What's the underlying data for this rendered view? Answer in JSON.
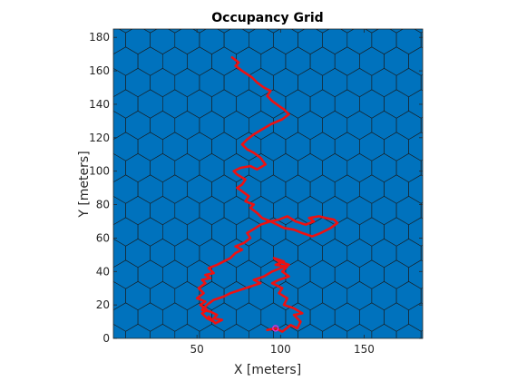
{
  "chart_data": {
    "type": "scatter",
    "title": "Occupancy Grid",
    "xlabel": "X [meters]",
    "ylabel": "Y [meters]",
    "xlim": [
      0,
      185
    ],
    "ylim": [
      0,
      185
    ],
    "xticks": [
      "50",
      "100",
      "150"
    ],
    "yticks": [
      "0",
      "20",
      "40",
      "60",
      "80",
      "100",
      "120",
      "140",
      "160",
      "180"
    ],
    "grid": false,
    "legend": "none",
    "hex_radius": 8.5,
    "colors": {
      "occupied": "#0072BD",
      "hex_edge": "#1a1a1a",
      "free_background": "#ffffff",
      "path": "#ee1111",
      "start_marker": "#ee2ad3"
    },
    "path": {
      "x": [
        92,
        97,
        101,
        106,
        110,
        112,
        108,
        113,
        108,
        102,
        104,
        99,
        101,
        95,
        99,
        105,
        101,
        104,
        97,
        102,
        96,
        99,
        105,
        100,
        95,
        90,
        84,
        88,
        82,
        76,
        70,
        66,
        60,
        56,
        53,
        58,
        62,
        60,
        65,
        61,
        57,
        60,
        56,
        53,
        56,
        52,
        55,
        50,
        54,
        51,
        55,
        53,
        58,
        55,
        60,
        57,
        62,
        66,
        70,
        73,
        77,
        73,
        78,
        82,
        80,
        85,
        88,
        94,
        99,
        104,
        109,
        115,
        120,
        117,
        123,
        127,
        132,
        134,
        130,
        124,
        119,
        113,
        108,
        102,
        98,
        94,
        89,
        86,
        82,
        84,
        79,
        81,
        77,
        74,
        77,
        79,
        74,
        72,
        76,
        82,
        86,
        91,
        88,
        84,
        80,
        77,
        80,
        84,
        89,
        94,
        101,
        105,
        102,
        99,
        95,
        92,
        94,
        90,
        86,
        83,
        80,
        77,
        73,
        75,
        71
      ],
      "y": [
        5,
        6,
        4,
        8,
        6,
        10,
        14,
        15,
        18,
        20,
        24,
        27,
        30,
        33,
        35,
        37,
        40,
        43,
        44,
        46,
        48,
        46,
        44,
        42,
        40,
        37,
        35,
        33,
        31,
        29,
        27,
        25,
        23,
        20,
        17,
        16,
        14,
        12,
        11,
        9,
        13,
        10,
        12,
        15,
        17,
        20,
        22,
        24,
        27,
        30,
        33,
        35,
        36,
        38,
        39,
        42,
        44,
        46,
        48,
        51,
        53,
        55,
        57,
        60,
        63,
        66,
        68,
        70,
        71,
        73,
        70,
        68,
        70,
        72,
        73,
        72,
        71,
        69,
        66,
        63,
        61,
        63,
        65,
        66,
        68,
        70,
        72,
        75,
        78,
        80,
        82,
        85,
        88,
        90,
        92,
        95,
        98,
        100,
        102,
        103,
        101,
        104,
        108,
        111,
        113,
        116,
        119,
        122,
        125,
        128,
        131,
        134,
        137,
        139,
        142,
        145,
        148,
        150,
        153,
        156,
        158,
        160,
        163,
        165,
        168
      ]
    },
    "start": {
      "x": 97,
      "y": 6
    }
  }
}
